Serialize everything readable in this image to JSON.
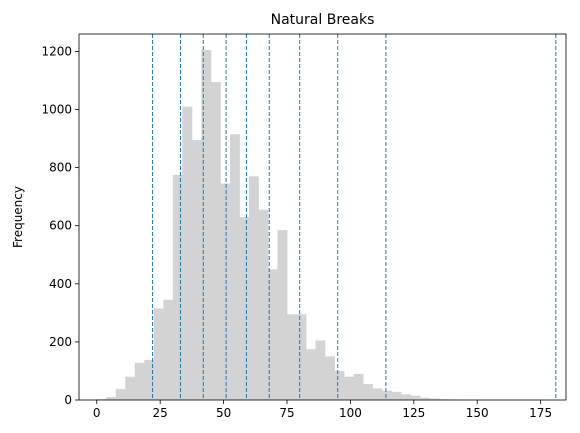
{
  "chart_data": {
    "type": "bar",
    "title": "Natural Breaks",
    "xlabel": "",
    "ylabel": "Frequency",
    "xlim": [
      -7,
      185
    ],
    "ylim": [
      0,
      1260
    ],
    "x_ticks": [
      0,
      25,
      50,
      75,
      100,
      125,
      150,
      175
    ],
    "y_ticks": [
      0,
      200,
      400,
      600,
      800,
      1000,
      1200
    ],
    "bar_color": "#d3d3d3",
    "break_line_color": "#1f77b4",
    "bin_edges": [
      0,
      3.75,
      7.5,
      11.25,
      15,
      18.75,
      22.5,
      26.25,
      30,
      33.75,
      37.5,
      41.25,
      45,
      48.75,
      52.5,
      56.25,
      60,
      63.75,
      67.5,
      71.25,
      75,
      78.75,
      82.5,
      86.25,
      90,
      93.75,
      97.5,
      101.25,
      105,
      108.75,
      112.5,
      116.25,
      120,
      123.75,
      127.5,
      131.25,
      135,
      138.75,
      142.5,
      146.25,
      150,
      153.75,
      157.5,
      161.25,
      165,
      168.75,
      172.5,
      176.25,
      180
    ],
    "counts": [
      3,
      10,
      38,
      80,
      128,
      138,
      315,
      345,
      775,
      1010,
      895,
      1205,
      1095,
      745,
      915,
      630,
      770,
      655,
      450,
      585,
      295,
      295,
      175,
      205,
      150,
      100,
      80,
      90,
      55,
      40,
      32,
      28,
      20,
      15,
      8,
      5,
      3,
      2,
      1,
      1,
      0,
      0,
      0,
      0,
      0,
      0,
      0,
      0
    ],
    "breaks": [
      22,
      33,
      42,
      51,
      59,
      68,
      80,
      95,
      114,
      181
    ]
  }
}
